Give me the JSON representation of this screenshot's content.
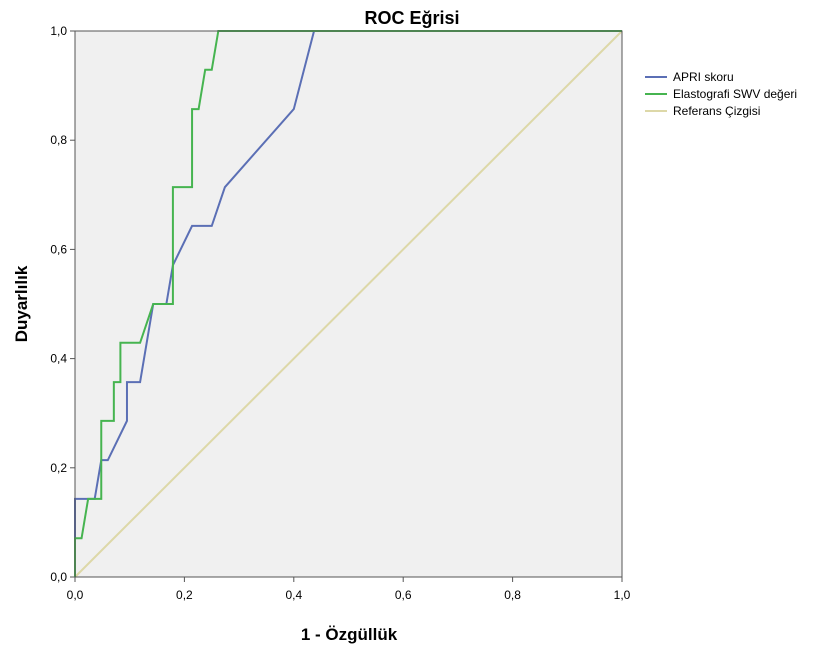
{
  "chart_data": {
    "type": "line",
    "title": "ROC Eğrisi",
    "xlabel": "1 - Özgüllük",
    "ylabel": "Duyarlılık",
    "xlim": [
      0,
      1
    ],
    "ylim": [
      0,
      1
    ],
    "x_ticks": [
      "0,0",
      "0,2",
      "0,4",
      "0,6",
      "0,8",
      "1,0"
    ],
    "y_ticks": [
      "0,0",
      "0,2",
      "0,4",
      "0,6",
      "0,8",
      "1,0"
    ],
    "grid": false,
    "legend_position": "right",
    "plot_background": "#f0f0f0",
    "series": [
      {
        "name": "APRI skoru",
        "color": "#5b6fb5",
        "points": [
          [
            0.0,
            0.0
          ],
          [
            0.0,
            0.143
          ],
          [
            0.036,
            0.143
          ],
          [
            0.048,
            0.214
          ],
          [
            0.06,
            0.214
          ],
          [
            0.095,
            0.286
          ],
          [
            0.095,
            0.357
          ],
          [
            0.119,
            0.357
          ],
          [
            0.143,
            0.5
          ],
          [
            0.167,
            0.5
          ],
          [
            0.179,
            0.571
          ],
          [
            0.214,
            0.643
          ],
          [
            0.25,
            0.643
          ],
          [
            0.274,
            0.714
          ],
          [
            0.4,
            0.857
          ],
          [
            0.437,
            1.0
          ],
          [
            1.0,
            1.0
          ]
        ]
      },
      {
        "name": "Elastografi SWV değeri",
        "color": "#46b450",
        "points": [
          [
            0.0,
            0.0
          ],
          [
            0.0,
            0.071
          ],
          [
            0.012,
            0.071
          ],
          [
            0.024,
            0.143
          ],
          [
            0.048,
            0.143
          ],
          [
            0.048,
            0.286
          ],
          [
            0.071,
            0.286
          ],
          [
            0.071,
            0.357
          ],
          [
            0.083,
            0.357
          ],
          [
            0.083,
            0.429
          ],
          [
            0.119,
            0.429
          ],
          [
            0.143,
            0.5
          ],
          [
            0.179,
            0.5
          ],
          [
            0.179,
            0.714
          ],
          [
            0.214,
            0.714
          ],
          [
            0.214,
            0.857
          ],
          [
            0.226,
            0.857
          ],
          [
            0.238,
            0.929
          ],
          [
            0.25,
            0.929
          ],
          [
            0.262,
            1.0
          ],
          [
            1.0,
            1.0
          ]
        ]
      },
      {
        "name": "Referans Çizgisi",
        "color": "#ddd8a8",
        "points": [
          [
            0.0,
            0.0
          ],
          [
            1.0,
            1.0
          ]
        ]
      }
    ]
  }
}
